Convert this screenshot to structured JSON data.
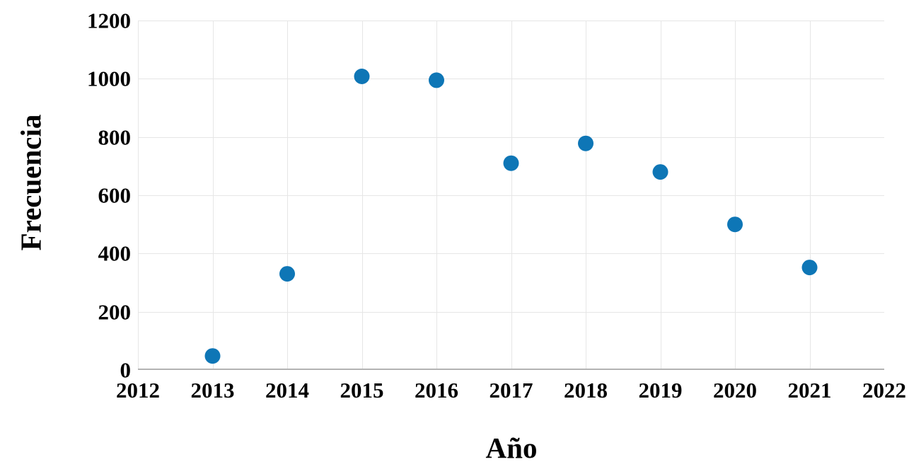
{
  "chart_data": {
    "type": "scatter",
    "title": "",
    "xlabel": "Año",
    "ylabel": "Frecuencia",
    "x": [
      2013,
      2014,
      2015,
      2016,
      2017,
      2018,
      2019,
      2020,
      2021
    ],
    "y": [
      48,
      330,
      1008,
      995,
      710,
      778,
      680,
      500,
      352
    ],
    "xlim": [
      2012,
      2022
    ],
    "ylim": [
      0,
      1200
    ],
    "xtick_values": [
      2012,
      2013,
      2014,
      2015,
      2016,
      2017,
      2018,
      2019,
      2020,
      2021,
      2022
    ],
    "xtick_labels": [
      "2012",
      "2013",
      "2014",
      "2015",
      "2016",
      "2017",
      "2018",
      "2019",
      "2020",
      "2021",
      "2022"
    ],
    "ytick_values": [
      0,
      200,
      400,
      600,
      800,
      1000,
      1200
    ],
    "ytick_labels": [
      "0",
      "200",
      "400",
      "600",
      "800",
      "1000",
      "1200"
    ],
    "grid": true,
    "legend_position": "none",
    "colors": {
      "point": "#0e76b6",
      "grid": "#e6e6e6",
      "axis_line": "#b3b3b3",
      "text": "#000000",
      "background": "#ffffff"
    }
  }
}
